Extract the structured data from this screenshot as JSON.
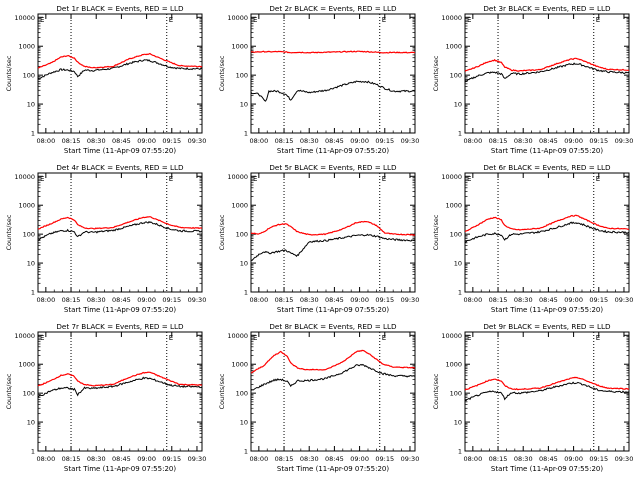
{
  "colors": {
    "events": "#000000",
    "lld": "#ff0000",
    "axis": "#000000",
    "background": "#ffffff"
  },
  "common": {
    "ylabel": "Counts/sec",
    "xlabel": "Start Time (11-Apr-09 07:55:20)",
    "x_ticks": [
      "08:00",
      "08:15",
      "08:30",
      "08:45",
      "09:00",
      "09:15",
      "09:30"
    ],
    "x_tick_minutes": [
      0,
      15,
      30,
      45,
      60,
      75,
      90
    ],
    "y_ticks": [
      "1",
      "10",
      "100",
      "1000",
      "10000"
    ],
    "y_tick_values": [
      1,
      10,
      100,
      1000,
      10000
    ],
    "xlim_minutes": [
      -4.67,
      93
    ],
    "ylim": [
      1,
      13000
    ],
    "yscale": "log",
    "vlines_minutes": [
      15,
      72
    ],
    "vline_style": "dotted"
  },
  "chart_data": [
    {
      "type": "line",
      "title": "Det 1r BLACK = Events, RED = LLD",
      "x": [
        -4.67,
        3,
        9,
        13,
        17,
        19,
        23,
        28,
        40,
        50,
        58,
        62,
        66,
        74,
        80,
        93
      ],
      "series": [
        {
          "label": "Events",
          "color": "#000000",
          "values": [
            75,
            120,
            155,
            150,
            135,
            90,
            150,
            145,
            170,
            260,
            330,
            320,
            270,
            190,
            170,
            165
          ]
        },
        {
          "label": "LLD",
          "color": "#ff0000",
          "values": [
            175,
            260,
            420,
            470,
            390,
            280,
            200,
            180,
            200,
            370,
            510,
            540,
            430,
            280,
            210,
            200
          ]
        }
      ]
    },
    {
      "type": "line",
      "title": "Det 2r BLACK = Events, RED = LLD",
      "x": [
        -4.67,
        0,
        4,
        6,
        11,
        16,
        19,
        23,
        30,
        40,
        50,
        58,
        64,
        70,
        75,
        80,
        93
      ],
      "series": [
        {
          "label": "Events",
          "color": "#000000",
          "values": [
            25,
            22,
            12,
            28,
            28,
            22,
            14,
            30,
            25,
            30,
            45,
            60,
            60,
            48,
            35,
            28,
            28
          ]
        },
        {
          "label": "LLD",
          "color": "#ff0000",
          "values": [
            620,
            640,
            650,
            640,
            650,
            630,
            600,
            620,
            600,
            620,
            640,
            660,
            650,
            620,
            600,
            610,
            600
          ]
        }
      ]
    },
    {
      "type": "line",
      "title": "Det 3r BLACK = Events, RED = LLD",
      "x": [
        -4.67,
        3,
        9,
        13,
        17,
        19,
        23,
        28,
        40,
        50,
        58,
        62,
        66,
        74,
        80,
        93
      ],
      "series": [
        {
          "label": "Events",
          "color": "#000000",
          "values": [
            60,
            95,
            120,
            125,
            110,
            75,
            115,
            110,
            130,
            180,
            240,
            250,
            215,
            150,
            130,
            120
          ]
        },
        {
          "label": "LLD",
          "color": "#ff0000",
          "values": [
            135,
            200,
            290,
            330,
            270,
            190,
            150,
            140,
            155,
            250,
            350,
            380,
            310,
            200,
            160,
            150
          ]
        }
      ]
    },
    {
      "type": "line",
      "title": "Det 4r BLACK = Events, RED = LLD",
      "x": [
        -4.67,
        3,
        9,
        13,
        17,
        19,
        23,
        28,
        40,
        50,
        58,
        62,
        66,
        74,
        80,
        93
      ],
      "series": [
        {
          "label": "Events",
          "color": "#000000",
          "values": [
            65,
            105,
            130,
            135,
            120,
            80,
            120,
            115,
            135,
            190,
            250,
            260,
            220,
            150,
            130,
            125
          ]
        },
        {
          "label": "LLD",
          "color": "#ff0000",
          "values": [
            150,
            230,
            330,
            380,
            310,
            210,
            165,
            155,
            170,
            270,
            380,
            400,
            320,
            210,
            170,
            160
          ]
        }
      ]
    },
    {
      "type": "line",
      "title": "Det 5r BLACK = Events, RED = LLD",
      "x": [
        -4.67,
        0,
        3,
        6,
        11,
        16,
        19,
        23,
        30,
        40,
        50,
        58,
        64,
        70,
        75,
        80,
        93
      ],
      "series": [
        {
          "label": "Events",
          "color": "#000000",
          "values": [
            12,
            20,
            25,
            22,
            25,
            28,
            22,
            18,
            55,
            60,
            75,
            90,
            95,
            85,
            70,
            65,
            60
          ]
        },
        {
          "label": "LLD",
          "color": "#ff0000",
          "values": [
            110,
            100,
            120,
            160,
            210,
            230,
            180,
            120,
            95,
            100,
            150,
            250,
            280,
            200,
            110,
            100,
            95
          ]
        }
      ]
    },
    {
      "type": "line",
      "title": "Det 6r BLACK = Events, RED = LLD",
      "x": [
        -4.67,
        3,
        9,
        13,
        17,
        19,
        23,
        28,
        40,
        50,
        58,
        62,
        66,
        74,
        80,
        93
      ],
      "series": [
        {
          "label": "Events",
          "color": "#000000",
          "values": [
            55,
            80,
            100,
            105,
            95,
            65,
            100,
            100,
            120,
            170,
            240,
            250,
            210,
            140,
            120,
            115
          ]
        },
        {
          "label": "LLD",
          "color": "#ff0000",
          "values": [
            120,
            210,
            330,
            380,
            310,
            200,
            150,
            140,
            160,
            280,
            420,
            440,
            340,
            210,
            160,
            150
          ]
        }
      ]
    },
    {
      "type": "line",
      "title": "Det 7r BLACK = Events, RED = LLD",
      "x": [
        -4.67,
        3,
        9,
        13,
        17,
        19,
        23,
        28,
        40,
        50,
        58,
        62,
        66,
        74,
        80,
        93
      ],
      "series": [
        {
          "label": "Events",
          "color": "#000000",
          "values": [
            75,
            120,
            150,
            150,
            135,
            90,
            150,
            145,
            170,
            250,
            330,
            320,
            270,
            190,
            170,
            165
          ]
        },
        {
          "label": "LLD",
          "color": "#ff0000",
          "values": [
            175,
            270,
            410,
            460,
            380,
            260,
            200,
            180,
            200,
            360,
            500,
            530,
            420,
            270,
            200,
            190
          ]
        }
      ]
    },
    {
      "type": "line",
      "title": "Det 8r BLACK = Events, RED = LLD",
      "x": [
        -4.67,
        3,
        9,
        13,
        17,
        19,
        23,
        28,
        40,
        50,
        58,
        62,
        66,
        74,
        80,
        93
      ],
      "series": [
        {
          "label": "Events",
          "color": "#000000",
          "values": [
            120,
            200,
            280,
            300,
            250,
            170,
            270,
            270,
            320,
            520,
            900,
            950,
            750,
            470,
            400,
            380
          ]
        },
        {
          "label": "LLD",
          "color": "#ff0000",
          "values": [
            500,
            900,
            2000,
            2700,
            1900,
            1100,
            750,
            650,
            650,
            1200,
            2700,
            3000,
            2200,
            1000,
            800,
            750
          ]
        }
      ]
    },
    {
      "type": "line",
      "title": "Det 9r BLACK = Events, RED = LLD",
      "x": [
        -4.67,
        3,
        9,
        13,
        17,
        19,
        23,
        28,
        40,
        50,
        58,
        62,
        66,
        74,
        80,
        93
      ],
      "series": [
        {
          "label": "Events",
          "color": "#000000",
          "values": [
            55,
            85,
            110,
            115,
            100,
            65,
            105,
            100,
            120,
            170,
            220,
            230,
            200,
            130,
            115,
            110
          ]
        },
        {
          "label": "LLD",
          "color": "#ff0000",
          "values": [
            130,
            190,
            270,
            310,
            260,
            180,
            140,
            135,
            150,
            230,
            320,
            350,
            290,
            190,
            150,
            140
          ]
        }
      ]
    }
  ]
}
